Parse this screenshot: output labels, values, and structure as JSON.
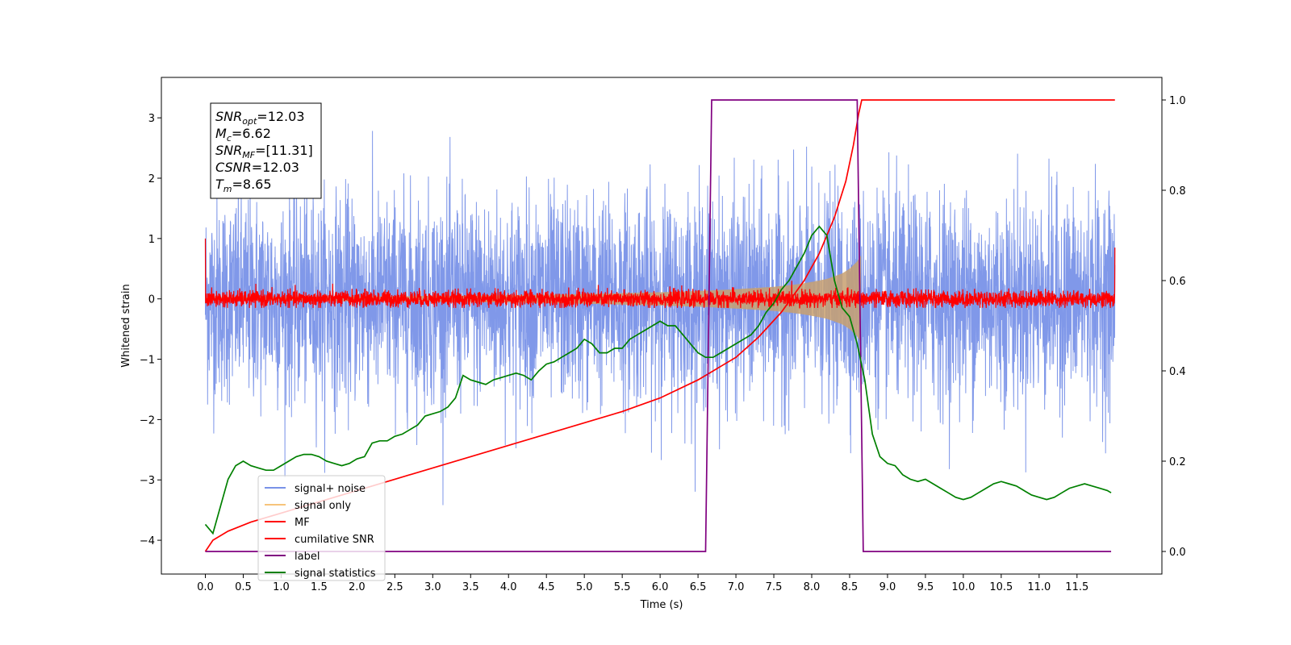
{
  "chart_data": {
    "type": "line",
    "title": "",
    "xlabel": "Time (s)",
    "ylabel": "Whitened strain",
    "y2label": "",
    "xlim": [
      -0.58,
      12.62
    ],
    "ylim": [
      -4.56,
      3.67
    ],
    "y2lim": [
      -0.05,
      1.05
    ],
    "xticks": [
      0.0,
      0.5,
      1.0,
      1.5,
      2.0,
      2.5,
      3.0,
      3.5,
      4.0,
      4.5,
      5.0,
      5.5,
      6.0,
      6.5,
      7.0,
      7.5,
      8.0,
      8.5,
      9.0,
      9.5,
      10.0,
      10.5,
      11.0,
      11.5
    ],
    "xtick_labels": [
      "0.0",
      "0.5",
      "1.0",
      "1.5",
      "2.0",
      "2.5",
      "3.0",
      "3.5",
      "4.0",
      "4.5",
      "5.0",
      "5.5",
      "6.0",
      "6.5",
      "7.0",
      "7.5",
      "8.0",
      "8.5",
      "9.0",
      "9.5",
      "10.0",
      "10.5",
      "11.0",
      "11.5"
    ],
    "yticks": [
      -4,
      -3,
      -2,
      -1,
      0,
      1,
      2,
      3
    ],
    "ytick_labels": [
      "−4",
      "−3",
      "−2",
      "−1",
      "0",
      "1",
      "2",
      "3"
    ],
    "y2ticks": [
      0.0,
      0.2,
      0.4,
      0.6,
      0.8,
      1.0
    ],
    "y2tick_labels": [
      "0.0",
      "0.2",
      "0.4",
      "0.6",
      "0.8",
      "1.0"
    ],
    "grid": false,
    "legend_position": "lower-left",
    "annotation_lines": [
      {
        "sym": "SNR",
        "sub": "opt",
        "rest": "=12.03"
      },
      {
        "sym": "M",
        "sub": "c",
        "rest": "=6.62"
      },
      {
        "sym": "SNR",
        "sub": "MF",
        "rest": "=[11.31]"
      },
      {
        "sym": "CSNR",
        "sub": "",
        "rest": "=12.03"
      },
      {
        "sym": "T",
        "sub": "m",
        "rest": "=8.65"
      }
    ],
    "series": [
      {
        "name": "signal+ noise",
        "color": "#7992e8",
        "axis": "left",
        "kind": "noise",
        "x_range": [
          0.0,
          12.0
        ],
        "noise_std": 0.85,
        "y_min": -4.15,
        "y_max": 3.3
      },
      {
        "name": "signal only",
        "color": "#f5b55a",
        "fill_color": "#c8a070",
        "axis": "left",
        "kind": "chirp_envelope",
        "x": [
          0.0,
          2.0,
          4.0,
          5.0,
          6.0,
          6.5,
          7.0,
          7.5,
          7.8,
          8.0,
          8.2,
          8.4,
          8.5,
          8.6,
          8.65
        ],
        "amplitude": [
          0.03,
          0.04,
          0.06,
          0.08,
          0.11,
          0.13,
          0.16,
          0.2,
          0.24,
          0.28,
          0.33,
          0.42,
          0.5,
          0.62,
          0.72
        ]
      },
      {
        "name": "MF",
        "color": "#ff0000",
        "axis": "left",
        "kind": "noise",
        "x_range": [
          0.0,
          12.0
        ],
        "noise_std": 0.07,
        "y_min": -0.15,
        "y_max": 0.35,
        "edge_values": [
          1.0,
          0.85
        ]
      },
      {
        "name": "cumilative SNR",
        "color": "#ff0000",
        "axis": "right",
        "kind": "line",
        "x": [
          0.0,
          0.1,
          0.3,
          0.6,
          1.0,
          1.5,
          2.0,
          2.5,
          3.0,
          3.5,
          4.0,
          4.5,
          5.0,
          5.5,
          6.0,
          6.5,
          7.0,
          7.3,
          7.6,
          7.9,
          8.1,
          8.3,
          8.45,
          8.55,
          8.62,
          8.66,
          12.0
        ],
        "y": [
          0.0,
          0.025,
          0.045,
          0.065,
          0.085,
          0.11,
          0.135,
          0.16,
          0.185,
          0.21,
          0.235,
          0.26,
          0.285,
          0.31,
          0.34,
          0.38,
          0.43,
          0.475,
          0.53,
          0.6,
          0.66,
          0.74,
          0.82,
          0.9,
          0.97,
          1.0,
          1.0
        ]
      },
      {
        "name": "label",
        "color": "#800080",
        "axis": "right",
        "kind": "line",
        "x": [
          0.0,
          6.6,
          6.68,
          8.6,
          8.68,
          11.95
        ],
        "y": [
          0.0,
          0.0,
          1.0,
          1.0,
          0.0,
          0.0
        ]
      },
      {
        "name": "signal statistics",
        "color": "#008000",
        "axis": "right",
        "kind": "line",
        "x": [
          0.0,
          0.1,
          0.2,
          0.3,
          0.4,
          0.5,
          0.6,
          0.7,
          0.8,
          0.9,
          1.0,
          1.1,
          1.2,
          1.3,
          1.4,
          1.5,
          1.6,
          1.7,
          1.8,
          1.9,
          2.0,
          2.1,
          2.2,
          2.3,
          2.4,
          2.5,
          2.6,
          2.7,
          2.8,
          2.9,
          3.0,
          3.1,
          3.2,
          3.3,
          3.4,
          3.5,
          3.6,
          3.7,
          3.8,
          3.9,
          4.0,
          4.1,
          4.2,
          4.3,
          4.4,
          4.5,
          4.6,
          4.7,
          4.8,
          4.9,
          5.0,
          5.1,
          5.2,
          5.3,
          5.4,
          5.5,
          5.6,
          5.7,
          5.8,
          5.9,
          6.0,
          6.1,
          6.2,
          6.3,
          6.4,
          6.5,
          6.6,
          6.7,
          6.8,
          6.9,
          7.0,
          7.1,
          7.2,
          7.3,
          7.4,
          7.5,
          7.6,
          7.7,
          7.8,
          7.9,
          8.0,
          8.1,
          8.2,
          8.3,
          8.4,
          8.5,
          8.6,
          8.7,
          8.8,
          8.9,
          9.0,
          9.1,
          9.2,
          9.3,
          9.4,
          9.5,
          9.6,
          9.7,
          9.8,
          9.9,
          10.0,
          10.1,
          10.2,
          10.3,
          10.4,
          10.5,
          10.6,
          10.7,
          10.8,
          10.9,
          11.0,
          11.1,
          11.2,
          11.3,
          11.4,
          11.5,
          11.6,
          11.7,
          11.8,
          11.9,
          11.95
        ],
        "y": [
          0.06,
          0.04,
          0.1,
          0.16,
          0.19,
          0.2,
          0.19,
          0.185,
          0.18,
          0.18,
          0.19,
          0.2,
          0.21,
          0.215,
          0.215,
          0.21,
          0.2,
          0.195,
          0.19,
          0.195,
          0.205,
          0.21,
          0.24,
          0.245,
          0.245,
          0.255,
          0.26,
          0.27,
          0.28,
          0.3,
          0.305,
          0.31,
          0.32,
          0.34,
          0.39,
          0.38,
          0.375,
          0.37,
          0.38,
          0.385,
          0.39,
          0.395,
          0.39,
          0.38,
          0.4,
          0.415,
          0.42,
          0.43,
          0.44,
          0.45,
          0.47,
          0.46,
          0.44,
          0.44,
          0.45,
          0.45,
          0.47,
          0.48,
          0.49,
          0.5,
          0.51,
          0.5,
          0.5,
          0.48,
          0.46,
          0.44,
          0.43,
          0.43,
          0.44,
          0.45,
          0.46,
          0.47,
          0.48,
          0.5,
          0.53,
          0.55,
          0.58,
          0.6,
          0.63,
          0.66,
          0.7,
          0.72,
          0.7,
          0.6,
          0.54,
          0.52,
          0.46,
          0.38,
          0.26,
          0.21,
          0.195,
          0.19,
          0.17,
          0.16,
          0.155,
          0.16,
          0.15,
          0.14,
          0.13,
          0.12,
          0.115,
          0.12,
          0.13,
          0.14,
          0.15,
          0.155,
          0.15,
          0.145,
          0.135,
          0.125,
          0.12,
          0.115,
          0.12,
          0.13,
          0.14,
          0.145,
          0.15,
          0.145,
          0.14,
          0.135,
          0.13
        ]
      }
    ]
  }
}
